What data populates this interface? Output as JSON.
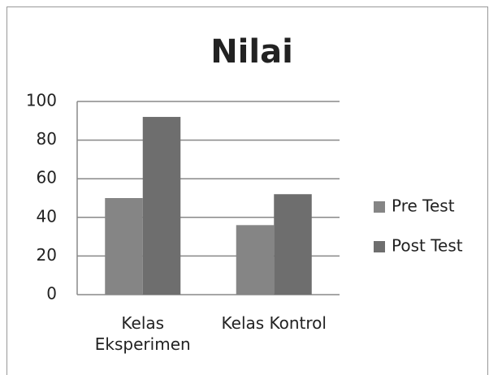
{
  "chart_data": {
    "type": "bar",
    "title": "Nilai",
    "categories": [
      "Kelas Eksperimen",
      "Kelas Kontrol"
    ],
    "series": [
      {
        "name": "Pre Test",
        "color": "#858585",
        "values": [
          50,
          36
        ]
      },
      {
        "name": "Post Test",
        "color": "#6e6e6e",
        "values": [
          92,
          52
        ]
      }
    ],
    "ylim": [
      0,
      100
    ],
    "yticks": [
      0,
      20,
      40,
      60,
      80,
      100
    ],
    "grid": true,
    "legend": "right"
  }
}
